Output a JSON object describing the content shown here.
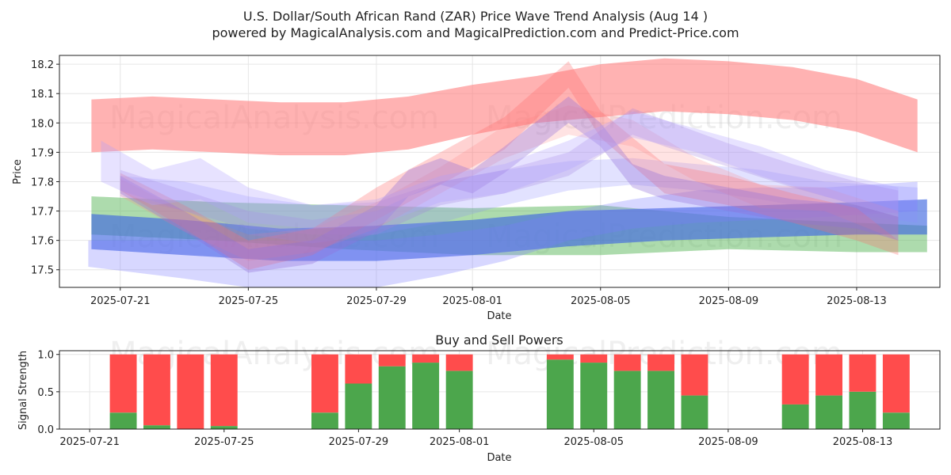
{
  "chart_data": [
    {
      "type": "area",
      "title": "U.S. Dollar/South African Rand (ZAR) Price Wave Trend Analysis (Aug 14 )",
      "subtitle": "powered by MagicalAnalysis.com and MagicalPrediction.com and Predict-Price.com",
      "xlabel": "Date",
      "ylabel": "Price",
      "ylim": [
        17.44,
        18.23
      ],
      "yticks": [
        17.5,
        17.6,
        17.7,
        17.8,
        17.9,
        18.0,
        18.1,
        18.2
      ],
      "ytick_labels": [
        "17.5",
        "17.6",
        "17.7",
        "17.8",
        "17.9",
        "18.0",
        "18.1",
        "18.2"
      ],
      "x_start": "2025-07-20",
      "xticks": [
        {
          "label": "2025-07-21",
          "day": 1
        },
        {
          "label": "2025-07-25",
          "day": 5
        },
        {
          "label": "2025-07-29",
          "day": 9
        },
        {
          "label": "2025-08-01",
          "day": 12
        },
        {
          "label": "2025-08-05",
          "day": 16
        },
        {
          "label": "2025-08-09",
          "day": 20
        },
        {
          "label": "2025-08-13",
          "day": 24
        }
      ],
      "watermarks": [
        "MagicalAnalysis.com",
        "MagicalPrediction.com"
      ],
      "series": [
        {
          "name": "red-wide-band",
          "color": "#ff7f7f",
          "opacity": 0.6,
          "x": [
            0.1,
            2,
            4,
            6,
            8,
            10,
            12,
            14,
            16,
            18,
            20,
            22,
            24,
            25.9
          ],
          "upper": [
            18.08,
            18.09,
            18.08,
            18.07,
            18.07,
            18.09,
            18.13,
            18.16,
            18.2,
            18.22,
            18.21,
            18.19,
            18.15,
            18.08
          ],
          "lower": [
            17.9,
            17.91,
            17.9,
            17.89,
            17.89,
            17.91,
            17.96,
            18.0,
            18.02,
            18.04,
            18.03,
            18.01,
            17.97,
            17.9
          ]
        },
        {
          "name": "green-band",
          "color": "#5cb85c",
          "opacity": 0.5,
          "x": [
            0.1,
            4,
            8,
            12,
            16,
            20,
            24,
            26.2
          ],
          "upper": [
            17.75,
            17.73,
            17.72,
            17.71,
            17.72,
            17.68,
            17.66,
            17.65
          ],
          "lower": [
            17.62,
            17.6,
            17.57,
            17.55,
            17.55,
            17.57,
            17.56,
            17.56
          ]
        },
        {
          "name": "blue-band",
          "color": "#4169e1",
          "opacity": 0.65,
          "x": [
            0.1,
            3,
            6,
            9,
            12,
            15,
            18,
            21,
            24,
            26.2
          ],
          "upper": [
            17.69,
            17.67,
            17.64,
            17.65,
            17.67,
            17.7,
            17.71,
            17.72,
            17.73,
            17.74
          ],
          "lower": [
            17.57,
            17.55,
            17.53,
            17.53,
            17.55,
            17.58,
            17.6,
            17.61,
            17.62,
            17.62
          ]
        },
        {
          "name": "blue-lower-band",
          "color": "#7b7bff",
          "opacity": 0.3,
          "x": [
            0,
            3,
            5,
            7,
            9,
            11,
            13,
            15,
            17,
            19,
            21,
            23,
            25.9
          ],
          "upper": [
            17.6,
            17.6,
            17.6,
            17.6,
            17.6,
            17.62,
            17.65,
            17.7,
            17.74,
            17.77,
            17.78,
            17.78,
            17.8
          ],
          "lower": [
            17.51,
            17.47,
            17.44,
            17.44,
            17.44,
            17.48,
            17.53,
            17.6,
            17.64,
            17.66,
            17.67,
            17.68,
            17.7
          ]
        },
        {
          "name": "blue-upper-band",
          "color": "#8c8cff",
          "opacity": 0.25,
          "x": [
            1,
            3,
            5,
            7,
            9,
            11,
            13,
            15,
            17,
            19,
            21,
            23,
            25.9
          ],
          "upper": [
            17.82,
            17.8,
            17.75,
            17.72,
            17.73,
            17.8,
            17.84,
            17.87,
            17.88,
            17.86,
            17.84,
            17.8,
            17.78
          ],
          "lower": [
            17.75,
            17.7,
            17.64,
            17.62,
            17.62,
            17.66,
            17.72,
            17.77,
            17.79,
            17.77,
            17.74,
            17.7,
            17.66
          ]
        },
        {
          "name": "red-wave-a",
          "color": "#ff6b6b",
          "opacity": 0.3,
          "x": [
            1,
            3,
            5,
            7,
            9,
            11,
            13,
            15,
            16,
            18,
            20,
            22,
            24,
            25.3
          ],
          "upper": [
            17.83,
            17.72,
            17.6,
            17.64,
            17.78,
            17.9,
            18.02,
            18.21,
            18.04,
            17.86,
            17.82,
            17.76,
            17.71,
            17.6
          ],
          "lower": [
            17.77,
            17.64,
            17.5,
            17.55,
            17.67,
            17.79,
            17.91,
            18.12,
            17.95,
            17.76,
            17.72,
            17.66,
            17.6,
            17.55
          ]
        },
        {
          "name": "red-wave-b",
          "color": "#ff8080",
          "opacity": 0.22,
          "x": [
            1,
            3,
            5,
            7,
            9,
            11,
            13,
            15,
            17,
            19,
            21,
            23,
            25.3
          ],
          "upper": [
            17.81,
            17.7,
            17.62,
            17.64,
            17.73,
            17.85,
            17.99,
            18.06,
            18.01,
            17.88,
            17.79,
            17.78,
            17.7
          ],
          "lower": [
            17.75,
            17.63,
            17.53,
            17.56,
            17.64,
            17.76,
            17.88,
            17.96,
            17.92,
            17.8,
            17.71,
            17.7,
            17.6
          ]
        },
        {
          "name": "purple-wave-a",
          "color": "#9370db",
          "opacity": 0.35,
          "x": [
            1,
            3,
            5,
            7,
            9,
            10,
            11,
            12,
            13,
            15,
            16,
            17,
            18,
            20,
            22,
            24,
            25.3
          ],
          "upper": [
            17.82,
            17.7,
            17.57,
            17.6,
            17.72,
            17.84,
            17.88,
            17.84,
            17.92,
            18.09,
            18.0,
            17.86,
            17.82,
            17.78,
            17.74,
            17.72,
            17.68
          ],
          "lower": [
            17.76,
            17.63,
            17.49,
            17.52,
            17.63,
            17.75,
            17.79,
            17.76,
            17.83,
            18.0,
            17.92,
            17.78,
            17.74,
            17.7,
            17.66,
            17.64,
            17.6
          ]
        },
        {
          "name": "purple-wave-b",
          "color": "#a080e0",
          "opacity": 0.28,
          "x": [
            1,
            3,
            5,
            7,
            9,
            11,
            13,
            15,
            17,
            18,
            20,
            22,
            24,
            25.3
          ],
          "upper": [
            17.84,
            17.77,
            17.7,
            17.67,
            17.7,
            17.8,
            17.84,
            17.9,
            18.05,
            18.01,
            17.93,
            17.86,
            17.8,
            17.77
          ],
          "lower": [
            17.77,
            17.7,
            17.62,
            17.59,
            17.62,
            17.72,
            17.76,
            17.82,
            17.96,
            17.92,
            17.85,
            17.78,
            17.72,
            17.69
          ]
        },
        {
          "name": "lilac-wave",
          "color": "#b0a0ff",
          "opacity": 0.3,
          "x": [
            0.4,
            2,
            3.5,
            5,
            7,
            9,
            11,
            13,
            15,
            17,
            19,
            21,
            23,
            25.3
          ],
          "upper": [
            17.94,
            17.84,
            17.88,
            17.78,
            17.72,
            17.74,
            17.82,
            17.86,
            17.94,
            18.04,
            17.98,
            17.92,
            17.84,
            17.78
          ],
          "lower": [
            17.8,
            17.72,
            17.74,
            17.66,
            17.64,
            17.65,
            17.73,
            17.76,
            17.84,
            17.95,
            17.9,
            17.82,
            17.75,
            17.68
          ]
        }
      ]
    },
    {
      "type": "bar",
      "title": "Buy and Sell Powers",
      "xlabel": "Date",
      "ylabel": "Signal Strength",
      "ylim": [
        0,
        1.05
      ],
      "yticks": [
        0.0,
        0.5,
        1.0
      ],
      "ytick_labels": [
        "0.0",
        "0.5",
        "1.0"
      ],
      "x_start": "2025-07-21",
      "xticks": [
        {
          "label": "2025-07-21",
          "day": 0
        },
        {
          "label": "2025-07-25",
          "day": 4
        },
        {
          "label": "2025-07-29",
          "day": 8
        },
        {
          "label": "2025-08-01",
          "day": 11
        },
        {
          "label": "2025-08-05",
          "day": 15
        },
        {
          "label": "2025-08-09",
          "day": 19
        },
        {
          "label": "2025-08-13",
          "day": 23
        }
      ],
      "series": [
        {
          "name": "Buy",
          "color": "#4ca64c"
        },
        {
          "name": "Sell",
          "color": "#ff4c4c"
        }
      ],
      "bars": [
        {
          "date": "2025-07-22",
          "day": 1,
          "buy": 0.22
        },
        {
          "date": "2025-07-23",
          "day": 2,
          "buy": 0.05
        },
        {
          "date": "2025-07-24",
          "day": 3,
          "buy": 0.0
        },
        {
          "date": "2025-07-25",
          "day": 4,
          "buy": 0.04
        },
        {
          "date": "2025-07-28",
          "day": 7,
          "buy": 0.22
        },
        {
          "date": "2025-07-29",
          "day": 8,
          "buy": 0.61
        },
        {
          "date": "2025-07-30",
          "day": 9,
          "buy": 0.84
        },
        {
          "date": "2025-07-31",
          "day": 10,
          "buy": 0.89
        },
        {
          "date": "2025-08-01",
          "day": 11,
          "buy": 0.78
        },
        {
          "date": "2025-08-04",
          "day": 14,
          "buy": 0.93
        },
        {
          "date": "2025-08-05",
          "day": 15,
          "buy": 0.89
        },
        {
          "date": "2025-08-06",
          "day": 16,
          "buy": 0.78
        },
        {
          "date": "2025-08-07",
          "day": 17,
          "buy": 0.78
        },
        {
          "date": "2025-08-08",
          "day": 18,
          "buy": 0.45
        },
        {
          "date": "2025-08-11",
          "day": 21,
          "buy": 0.33
        },
        {
          "date": "2025-08-12",
          "day": 22,
          "buy": 0.45
        },
        {
          "date": "2025-08-13",
          "day": 23,
          "buy": 0.5
        },
        {
          "date": "2025-08-14",
          "day": 24,
          "buy": 0.22
        }
      ],
      "watermarks": [
        "MagicalAnalysis.com",
        "MagicalPrediction.com"
      ]
    }
  ]
}
